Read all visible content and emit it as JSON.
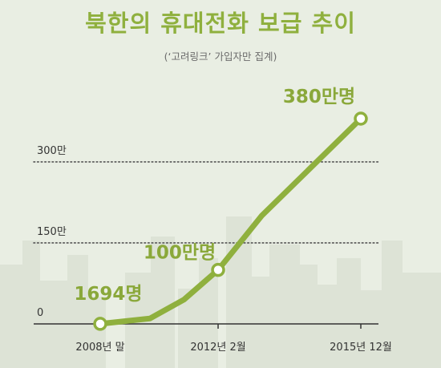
{
  "colors": {
    "background": "#e9eee3",
    "title": "#8fb03e",
    "line": "#8fb03e",
    "label": "#8aa83a",
    "buildings": "#dde3d6",
    "axis": "#333333"
  },
  "chart_data": {
    "type": "line",
    "title": "북한의 휴대전화 보급 추이",
    "subtitle": "(‘고려링크’ 가입자만 집계)",
    "xlabel": "",
    "ylabel": "",
    "ylim": [
      0,
      380
    ],
    "yticks": [
      {
        "value": 0,
        "label": "0"
      },
      {
        "value": 150,
        "label": "150만"
      },
      {
        "value": 300,
        "label": "300만"
      }
    ],
    "xticks": [
      {
        "x": 0,
        "label": "2008년 말"
      },
      {
        "x": 38,
        "label": "2012년 2월"
      },
      {
        "x": 84,
        "label": "2015년 12월"
      }
    ],
    "grid": "dotted horizontal at 150만 and 300만",
    "series": [
      {
        "x": [
          0,
          16,
          27,
          38,
          52,
          84
        ],
        "values": [
          0.1694,
          10,
          45,
          100,
          200,
          380
        ],
        "markers": [
          0,
          3,
          5
        ]
      }
    ],
    "annotations": [
      {
        "point": 0,
        "text": "1694명"
      },
      {
        "point": 3,
        "text": "100만명"
      },
      {
        "point": 5,
        "text": "380만명"
      }
    ]
  }
}
